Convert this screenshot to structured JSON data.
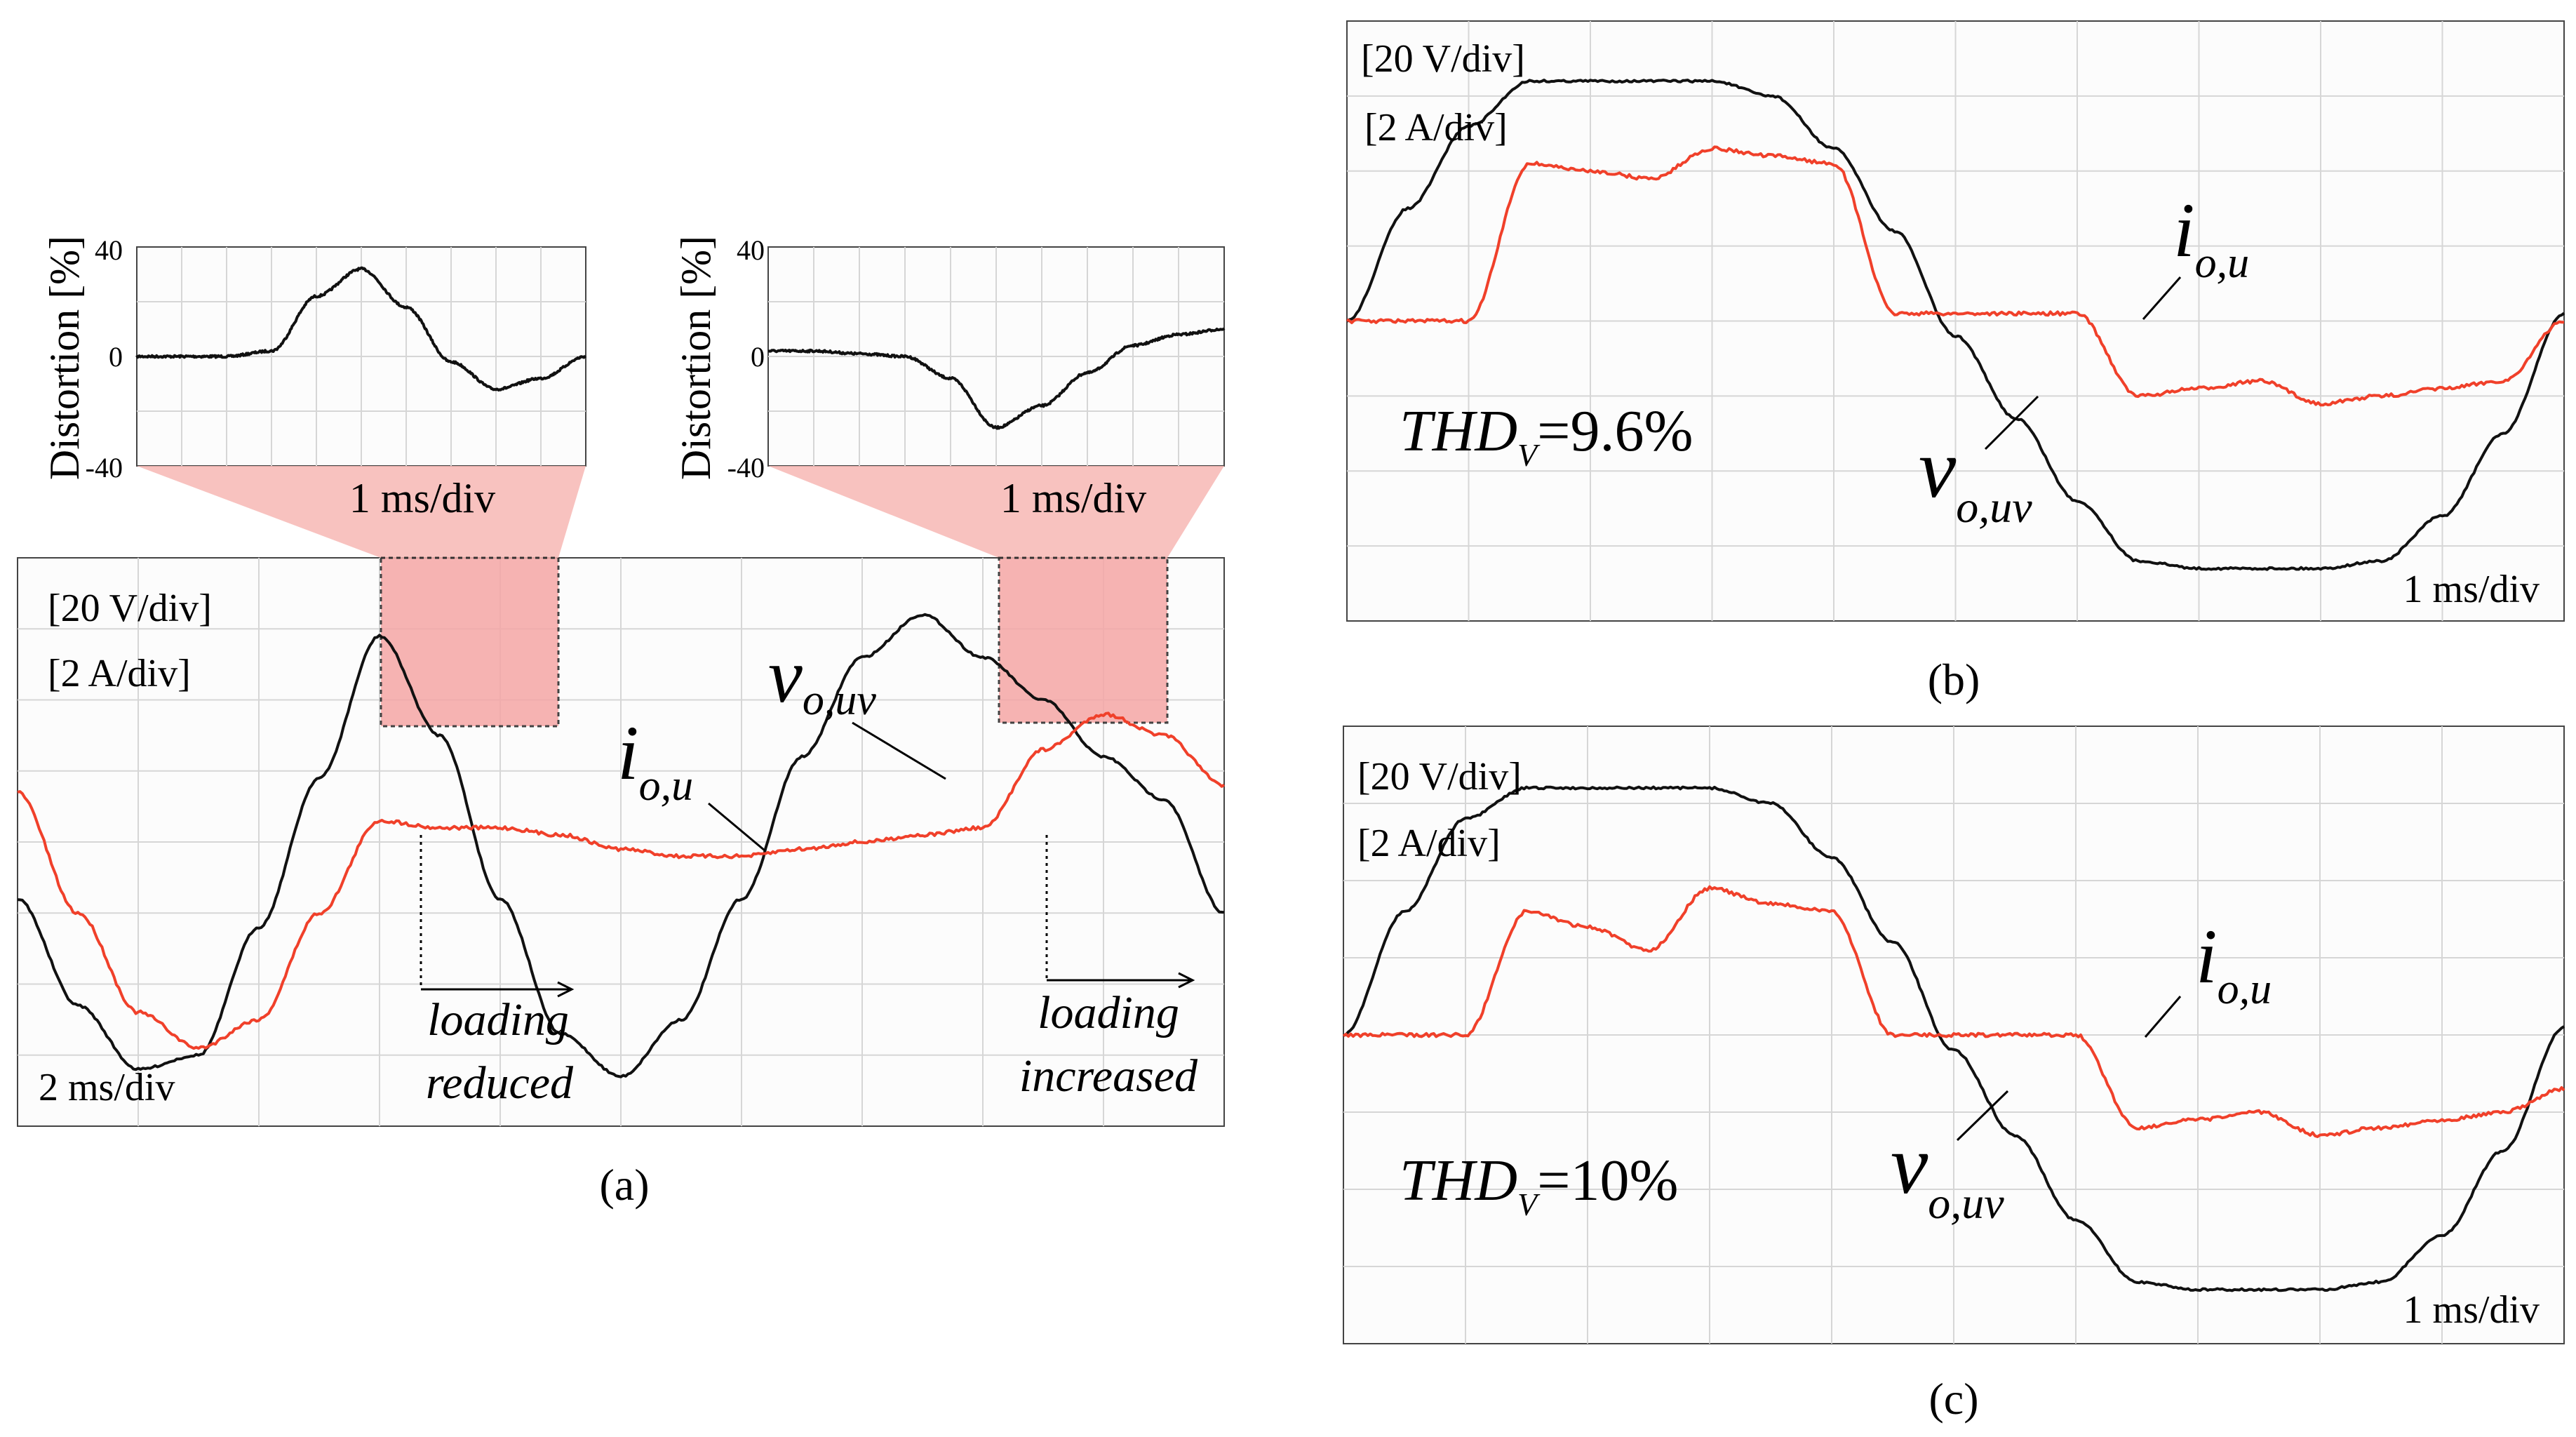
{
  "panels": {
    "a": {
      "caption": "(a)",
      "scales": [
        "[20 V/div]",
        "[2 A/div]"
      ],
      "time_scale": "2 ms/div",
      "zoom_time_scale": "1 ms/div",
      "annotations": {
        "reduced": [
          "loading",
          "reduced"
        ],
        "increased": [
          "loading",
          "increased"
        ]
      },
      "labels": {
        "current": "i",
        "current_sub": "o,u",
        "voltage": "v",
        "voltage_sub": "o,uv"
      }
    },
    "b": {
      "caption": "(b)",
      "scales": [
        "[20 V/div]",
        "[2 A/div]"
      ],
      "time_scale": "1 ms/div",
      "thd_prefix": "THD",
      "thd_sub": "V",
      "thd_value": "=9.6%",
      "labels": {
        "current": "i",
        "current_sub": "o,u",
        "voltage": "v",
        "voltage_sub": "o,uv"
      }
    },
    "c": {
      "caption": "(c)",
      "scales": [
        "[20 V/div]",
        "[2 A/div]"
      ],
      "time_scale": "1 ms/div",
      "thd_prefix": "THD",
      "thd_sub": "V",
      "thd_value": "=10%",
      "labels": {
        "current": "i",
        "current_sub": "o,u",
        "voltage": "v",
        "voltage_sub": "o,uv"
      }
    }
  },
  "chart_data": [
    {
      "type": "line",
      "panel": "a-inset-left",
      "ylabel": "Distortion [%]",
      "ylim": [
        -40,
        40
      ],
      "yticks": [
        "40",
        "0",
        "-40"
      ],
      "x": [
        0,
        1,
        2,
        3,
        4,
        5,
        6,
        7,
        8,
        9,
        10
      ],
      "series": [
        {
          "values": [
            0,
            0,
            0,
            2,
            22,
            32,
            18,
            -2,
            -12,
            -8,
            0
          ]
        }
      ]
    },
    {
      "type": "line",
      "panel": "a-inset-right",
      "ylabel": "Distortion [%]",
      "ylim": [
        -40,
        40
      ],
      "yticks": [
        "40",
        "0",
        "-40"
      ],
      "x": [
        0,
        1,
        2,
        3,
        4,
        5,
        6,
        7,
        8,
        9,
        10
      ],
      "series": [
        {
          "values": [
            2,
            2,
            1,
            0,
            -8,
            -26,
            -18,
            -6,
            4,
            8,
            10
          ]
        }
      ]
    },
    {
      "type": "line",
      "panel": "a",
      "xlim": [
        0,
        10
      ],
      "ylim": [
        -4,
        4
      ],
      "x": [
        0,
        0.5,
        1,
        1.5,
        2,
        2.5,
        3,
        3.5,
        4,
        4.5,
        5,
        5.5,
        6,
        6.5,
        7,
        7.5,
        8,
        8.5,
        9,
        9.5,
        10
      ],
      "series": [
        {
          "color": "#111111",
          "values": [
            -0.8,
            -2.3,
            -3.2,
            -3.0,
            -1.2,
            0.9,
            2.9,
            1.5,
            -0.8,
            -2.7,
            -3.3,
            -2.5,
            -0.8,
            1.2,
            2.6,
            3.2,
            2.6,
            2.0,
            1.2,
            0.6,
            -1.0
          ]
        },
        {
          "color": "#f0402a",
          "values": [
            0.7,
            -1.0,
            -2.4,
            -2.9,
            -2.5,
            -1.0,
            0.3,
            0.2,
            0.2,
            0.1,
            -0.1,
            -0.2,
            -0.2,
            -0.1,
            0.0,
            0.1,
            0.2,
            1.3,
            1.8,
            1.5,
            0.8
          ]
        }
      ]
    },
    {
      "type": "line",
      "panel": "b",
      "xlim": [
        0,
        10
      ],
      "ylim": [
        -4,
        4
      ],
      "x": [
        0,
        0.5,
        1,
        1.5,
        2,
        2.5,
        3,
        3.5,
        4,
        4.5,
        5,
        5.5,
        6,
        6.5,
        7,
        7.5,
        8,
        8.5,
        9,
        9.5,
        10
      ],
      "series": [
        {
          "color": "#111111",
          "values": [
            0.0,
            1.5,
            2.6,
            3.2,
            3.2,
            3.2,
            3.2,
            3.0,
            2.3,
            1.2,
            -0.2,
            -1.3,
            -2.4,
            -3.2,
            -3.3,
            -3.3,
            -3.3,
            -3.2,
            -2.6,
            -1.5,
            0.1
          ]
        },
        {
          "color": "#f0402a",
          "values": [
            0.0,
            0.0,
            0.0,
            2.1,
            2.0,
            1.9,
            2.3,
            2.2,
            2.1,
            0.1,
            0.1,
            0.1,
            0.1,
            -1.0,
            -0.9,
            -0.8,
            -1.1,
            -1.0,
            -0.9,
            -0.8,
            0.0
          ]
        }
      ]
    },
    {
      "type": "line",
      "panel": "c",
      "xlim": [
        0,
        10
      ],
      "ylim": [
        -4,
        4
      ],
      "x": [
        0,
        0.5,
        1,
        1.5,
        2,
        2.5,
        3,
        3.5,
        4,
        4.5,
        5,
        5.5,
        6,
        6.5,
        7,
        7.5,
        8,
        8.5,
        9,
        9.5,
        10
      ],
      "series": [
        {
          "color": "#111111",
          "values": [
            0.0,
            1.6,
            2.8,
            3.2,
            3.2,
            3.2,
            3.2,
            3.0,
            2.3,
            1.2,
            -0.2,
            -1.3,
            -2.4,
            -3.2,
            -3.3,
            -3.3,
            -3.3,
            -3.2,
            -2.6,
            -1.5,
            0.1
          ]
        },
        {
          "color": "#f0402a",
          "values": [
            0.0,
            0.0,
            0.0,
            1.6,
            1.4,
            1.1,
            1.9,
            1.7,
            1.6,
            0.0,
            0.0,
            0.0,
            0.0,
            -1.2,
            -1.1,
            -1.0,
            -1.3,
            -1.2,
            -1.1,
            -1.0,
            -0.7
          ]
        }
      ]
    }
  ]
}
